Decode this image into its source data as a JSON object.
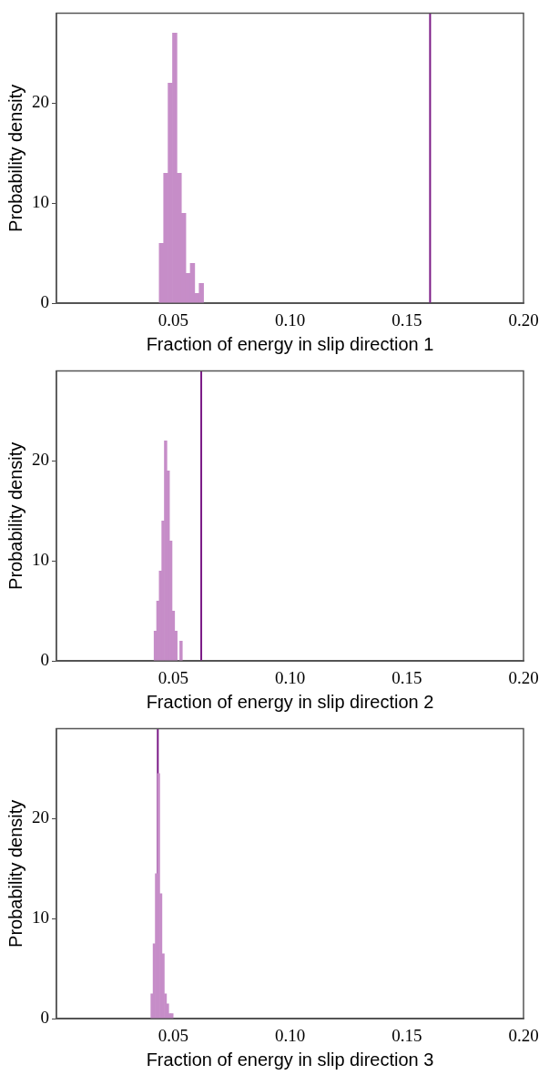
{
  "chart_data": [
    {
      "type": "histogram",
      "xlabel": "Fraction of energy in slip direction 1",
      "ylabel": "Probability density",
      "color": "#c68dc8",
      "bins": [
        0.044,
        0.0459,
        0.0478,
        0.0497,
        0.0516,
        0.0535,
        0.0554,
        0.0573,
        0.0592,
        0.0611,
        0.063
      ],
      "values": [
        6,
        13,
        22,
        27,
        13,
        9,
        3,
        4,
        1,
        2
      ],
      "xlim": [
        0,
        0.2
      ],
      "xticks": [
        {
          "value": 0.05,
          "label": "0.05"
        },
        {
          "value": 0.1,
          "label": "0.10"
        },
        {
          "value": 0.15,
          "label": "0.15"
        },
        {
          "value": 0.2,
          "label": "0.20"
        }
      ],
      "ylim": [
        0,
        29
      ],
      "yticks": [
        0,
        10,
        20
      ],
      "ref_lines": [
        {
          "axis": "x",
          "value": 0.16,
          "color": "#7b1a86"
        }
      ]
    },
    {
      "type": "histogram",
      "xlabel": "Fraction of energy in slip direction 2",
      "ylabel": "Probability density",
      "color": "#c68dc8",
      "bins": [
        0.0418,
        0.0429,
        0.044,
        0.0451,
        0.0462,
        0.0473,
        0.0484,
        0.0495,
        0.0506,
        0.0517,
        0.0528,
        0.0539
      ],
      "values": [
        3,
        6,
        9,
        14,
        22,
        19,
        12,
        5,
        3,
        0,
        2
      ],
      "xlim": [
        0,
        0.2
      ],
      "xticks": [
        {
          "value": 0.05,
          "label": "0.05"
        },
        {
          "value": 0.1,
          "label": "0.10"
        },
        {
          "value": 0.15,
          "label": "0.15"
        },
        {
          "value": 0.2,
          "label": "0.20"
        }
      ],
      "ylim": [
        0,
        29
      ],
      "yticks": [
        0,
        10,
        20
      ],
      "ref_lines": [
        {
          "axis": "x",
          "value": 0.062,
          "color": "#7b1a86"
        }
      ]
    },
    {
      "type": "histogram",
      "xlabel": "Fraction of energy in slip direction 3",
      "ylabel": "Probability density",
      "color": "#c68dc8",
      "bins": [
        0.0404,
        0.0414,
        0.0423,
        0.0433,
        0.0442,
        0.0452,
        0.0462,
        0.0471,
        0.0481,
        0.049,
        0.05
      ],
      "values": [
        2.5,
        7.5,
        14.5,
        24.5,
        12.5,
        6.5,
        2.5,
        1.5,
        0.5,
        0.5
      ],
      "xlim": [
        0,
        0.2
      ],
      "xticks": [
        {
          "value": 0.05,
          "label": "0.05"
        },
        {
          "value": 0.1,
          "label": "0.10"
        },
        {
          "value": 0.15,
          "label": "0.15"
        },
        {
          "value": 0.2,
          "label": "0.20"
        }
      ],
      "ylim": [
        0,
        29
      ],
      "yticks": [
        0,
        10,
        20
      ],
      "ref_lines": [
        {
          "axis": "x",
          "value": 0.0434,
          "color": "#7b1a86"
        }
      ]
    }
  ]
}
